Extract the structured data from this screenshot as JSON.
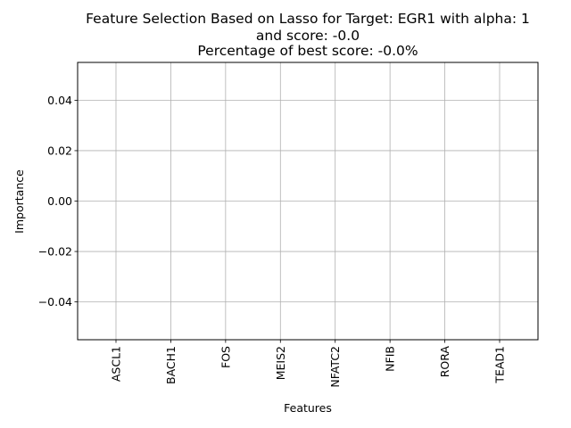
{
  "chart_data": {
    "type": "bar",
    "title_lines": [
      "Feature Selection Based on Lasso for Target: EGR1 with alpha: 1",
      "and score: -0.0",
      "Percentage of best score: -0.0%"
    ],
    "xlabel": "Features",
    "ylabel": "Importance",
    "categories": [
      "ASCL1",
      "BACH1",
      "FOS",
      "MEIS2",
      "NFATC2",
      "NFIB",
      "RORA",
      "TEAD1"
    ],
    "values": [
      0,
      0,
      0,
      0,
      0,
      0,
      0,
      0
    ],
    "ylim": [
      -0.055,
      0.055
    ],
    "yticks": [
      -0.04,
      -0.02,
      0.0,
      0.02,
      0.04
    ],
    "ytick_labels": [
      "−0.04",
      "−0.02",
      "0.00",
      "0.02",
      "0.04"
    ],
    "grid": true,
    "colors": {
      "grid": "#b0b0b0",
      "axis": "#000000",
      "bar": "#1f77b4"
    }
  }
}
